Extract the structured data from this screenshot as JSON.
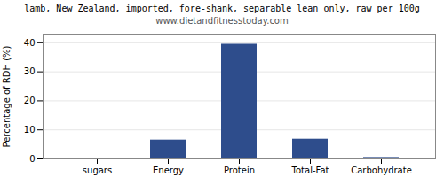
{
  "chart_data": {
    "type": "bar",
    "title": "lamb, New Zealand, imported, fore-shank, separable lean only, raw per 100g",
    "subtitle": "www.dietandfitnesstoday.com",
    "categories": [
      "sugars",
      "Energy",
      "Protein",
      "Total-Fat",
      "Carbohydrate"
    ],
    "values": [
      0,
      6.5,
      39.5,
      6.8,
      0.5
    ],
    "color": "#2e4d8c",
    "ylabel": "Percentage of RDH (%)",
    "ylim": [
      0,
      43
    ],
    "yticks": [
      0,
      10,
      20,
      30,
      40
    ],
    "grid": true
  }
}
